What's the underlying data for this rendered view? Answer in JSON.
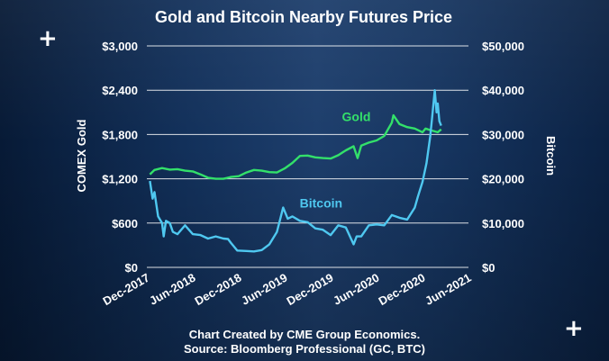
{
  "decor": {
    "plus_symbol": "+"
  },
  "chart_data": {
    "type": "line",
    "title": "Gold and Bitcoin Nearby Futures Price",
    "source_line1": "Chart Created by CME Group Economics.",
    "source_line2": "Source: Bloomberg Professional (GC, BTC)",
    "ylabel_left": "COMEX Gold",
    "ylabel_right": "Bitcoin",
    "xlim": [
      2017.917,
      2021.417
    ],
    "ylim_left": [
      0,
      3000
    ],
    "ylim_right": [
      0,
      50000
    ],
    "x_ticks": [
      2017.917,
      2018.417,
      2018.917,
      2019.417,
      2019.917,
      2020.417,
      2020.917,
      2021.417
    ],
    "x_tick_labels": [
      "Dec-2017",
      "Jun-2018",
      "Dec-2018",
      "Jun-2019",
      "Dec-2019",
      "Jun-2020",
      "Dec-2020",
      "Jun-2021"
    ],
    "y_ticks_left": [
      0,
      600,
      1200,
      1800,
      2400,
      3000
    ],
    "y_tick_labels_left": [
      "$0",
      "$600",
      "$1,200",
      "$1,800",
      "$2,400",
      "$3,000"
    ],
    "y_ticks_right": [
      0,
      10000,
      20000,
      30000,
      40000,
      50000
    ],
    "y_tick_labels_right": [
      "$0",
      "$10,000",
      "$20,000",
      "$30,000",
      "$40,000",
      "$50,000"
    ],
    "grid": true,
    "series": [
      {
        "name": "Gold",
        "axis": "left",
        "color": "#33e06a",
        "label": "Gold",
        "x": [
          2017.95,
          2018.0,
          2018.083,
          2018.167,
          2018.25,
          2018.333,
          2018.417,
          2018.5,
          2018.583,
          2018.667,
          2018.75,
          2018.833,
          2018.917,
          2019.0,
          2019.083,
          2019.167,
          2019.25,
          2019.333,
          2019.417,
          2019.5,
          2019.583,
          2019.667,
          2019.75,
          2019.833,
          2019.917,
          2020.0,
          2020.083,
          2020.167,
          2020.21,
          2020.25,
          2020.333,
          2020.417,
          2020.5,
          2020.583,
          2020.6,
          2020.667,
          2020.75,
          2020.833,
          2020.917,
          2020.95,
          2021.0,
          2021.083,
          2021.12
        ],
        "values": [
          1260,
          1320,
          1345,
          1325,
          1330,
          1310,
          1300,
          1260,
          1215,
          1200,
          1200,
          1225,
          1235,
          1285,
          1320,
          1310,
          1290,
          1285,
          1340,
          1415,
          1510,
          1515,
          1490,
          1480,
          1475,
          1520,
          1585,
          1640,
          1480,
          1650,
          1690,
          1720,
          1780,
          1960,
          2060,
          1940,
          1900,
          1880,
          1830,
          1880,
          1860,
          1830,
          1870
        ]
      },
      {
        "name": "Bitcoin",
        "axis": "right",
        "color": "#4fc8f0",
        "label": "Bitcoin",
        "x": [
          2017.95,
          2017.98,
          2018.0,
          2018.04,
          2018.083,
          2018.1,
          2018.125,
          2018.167,
          2018.2,
          2018.25,
          2018.333,
          2018.417,
          2018.5,
          2018.583,
          2018.667,
          2018.75,
          2018.8,
          2018.833,
          2018.9,
          2019.0,
          2019.083,
          2019.167,
          2019.25,
          2019.333,
          2019.4,
          2019.45,
          2019.5,
          2019.583,
          2019.667,
          2019.75,
          2019.833,
          2019.917,
          2020.0,
          2020.083,
          2020.167,
          2020.2,
          2020.25,
          2020.333,
          2020.417,
          2020.5,
          2020.583,
          2020.667,
          2020.75,
          2020.833,
          2020.867,
          2020.917,
          2020.96,
          2021.0,
          2021.02,
          2021.05,
          2021.07,
          2021.083,
          2021.1,
          2021.12
        ],
        "values": [
          19500,
          15500,
          17000,
          11500,
          10000,
          7000,
          10500,
          10000,
          8000,
          7500,
          9500,
          7500,
          7300,
          6500,
          7000,
          6500,
          6400,
          5500,
          3800,
          3700,
          3600,
          3900,
          5200,
          8000,
          13500,
          11000,
          11500,
          10500,
          10200,
          8800,
          8500,
          7300,
          9500,
          9000,
          5200,
          7000,
          7000,
          9500,
          9700,
          9500,
          11800,
          11200,
          10800,
          13500,
          16000,
          19300,
          23500,
          29500,
          33500,
          40000,
          35000,
          37000,
          33000,
          32000
        ]
      }
    ]
  }
}
